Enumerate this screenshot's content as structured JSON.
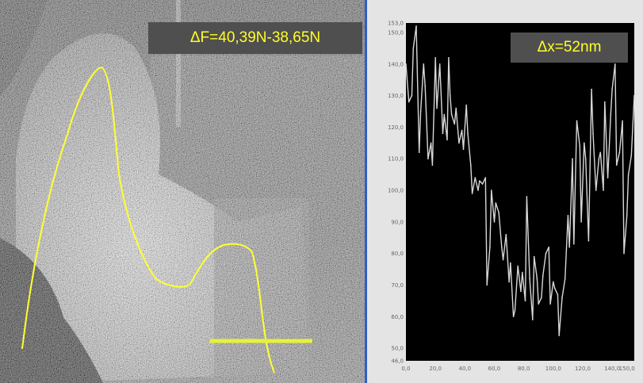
{
  "afm_image": {
    "force_label": "ΔF=40,39N-38,65N",
    "profile_color": "#ffff33",
    "marker_color": "#e6f23a"
  },
  "profile_plot": {
    "dx_label": "Δx=52nm",
    "background": "#000000",
    "trace_color": "#d8d8d8",
    "x_ticks": [
      "0,0",
      "20,0",
      "40,0",
      "60,0",
      "80,0",
      "100,0",
      "120,0",
      "140,0",
      "150,0"
    ],
    "y_ticks": [
      "46,0",
      "50,0",
      "60,0",
      "70,0",
      "80,0",
      "90,0",
      "100,0",
      "110,0",
      "120,0",
      "130,0",
      "140,0",
      "150,0",
      "153,0"
    ]
  },
  "chart_data": {
    "type": "line",
    "x_range": [
      0,
      155
    ],
    "y_range": [
      46,
      153
    ],
    "grid": false,
    "series": [
      {
        "x": [
          0,
          2,
          4,
          5,
          7,
          9,
          10,
          12,
          13,
          15,
          17,
          18,
          20,
          21,
          23,
          25,
          26,
          28,
          29,
          30,
          31,
          33,
          34,
          36,
          38,
          39,
          41,
          42,
          44,
          45,
          47,
          49,
          50,
          52,
          54,
          55,
          57,
          58,
          60,
          61,
          63,
          65,
          66,
          68,
          70,
          71,
          73,
          74,
          76,
          78,
          79,
          81,
          82,
          84,
          86,
          87,
          89,
          90,
          92,
          93,
          95,
          97,
          98,
          100,
          101,
          103,
          104,
          106,
          108,
          110,
          111,
          113,
          114,
          116,
          118,
          119,
          121,
          122,
          124,
          126,
          127,
          129,
          131,
          132,
          134,
          135,
          137,
          139,
          140,
          142,
          143,
          145,
          147,
          148,
          150,
          151,
          153,
          155
        ],
        "y": [
          140,
          128,
          130,
          145,
          152,
          112,
          125,
          140,
          133,
          110,
          115,
          108,
          142,
          126,
          140,
          118,
          124,
          116,
          142,
          130,
          124,
          121,
          126,
          115,
          119,
          113,
          127,
          118,
          108,
          99,
          104,
          100,
          103,
          102,
          104,
          70,
          82,
          100,
          90,
          96,
          93,
          82,
          78,
          86,
          71,
          77,
          60,
          62,
          76,
          68,
          74,
          65,
          98,
          72,
          59,
          79,
          72,
          64,
          66,
          73,
          80,
          82,
          64,
          71,
          69,
          67,
          54,
          66,
          72,
          92,
          82,
          110,
          83,
          122,
          114,
          90,
          115,
          110,
          84,
          132,
          118,
          100,
          110,
          112,
          100,
          128,
          104,
          124,
          132,
          140,
          108,
          112,
          122,
          80,
          92,
          105,
          111,
          130
        ]
      }
    ]
  }
}
